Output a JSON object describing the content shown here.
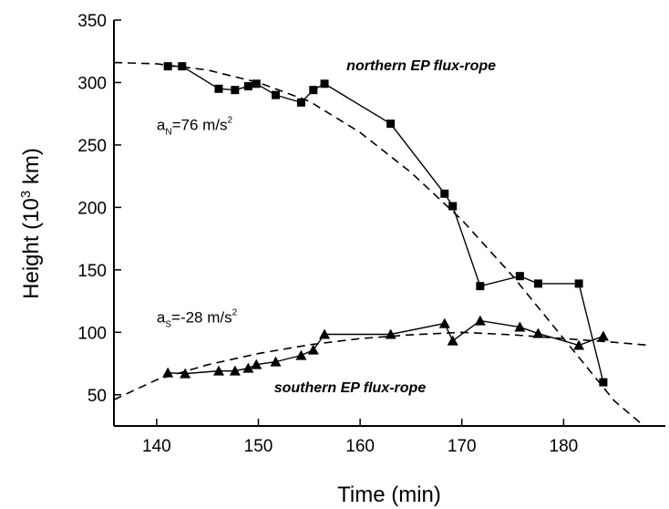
{
  "chart_data": {
    "type": "line",
    "x_label": "Time (min)",
    "y_label": {
      "before": "Height (10",
      "sup": "3",
      "after": " km)"
    },
    "xlim": [
      135.8,
      190
    ],
    "ylim": [
      25,
      350
    ],
    "xticks": [
      140,
      150,
      160,
      170,
      180
    ],
    "yticks": [
      50,
      100,
      150,
      200,
      250,
      300,
      350
    ],
    "series": [
      {
        "marker": "square",
        "color": "#000000",
        "style": "solid",
        "x": [
          141.1,
          142.5,
          146.1,
          147.7,
          149.0,
          149.8,
          151.7,
          154.2,
          155.4,
          156.5,
          163.0,
          168.3,
          169.1,
          171.8,
          175.7,
          177.5,
          181.5,
          183.9
        ],
        "values": [
          313,
          313,
          295,
          294,
          297,
          299,
          290,
          284,
          294,
          299,
          267,
          211,
          201,
          137,
          145,
          139,
          139,
          60
        ]
      },
      {
        "marker": "triangle",
        "color": "#000000",
        "style": "solid",
        "x": [
          141.1,
          142.8,
          146.1,
          147.7,
          149.0,
          149.8,
          151.7,
          154.2,
          155.4,
          156.5,
          163.0,
          168.3,
          169.1,
          171.8,
          175.7,
          177.5,
          181.5,
          183.9
        ],
        "values": [
          67.6,
          66.9,
          69.1,
          69.1,
          71.3,
          74.2,
          76.4,
          81.5,
          85.9,
          98.4,
          98.4,
          107.1,
          93.2,
          109.3,
          104.2,
          99.1,
          89.6,
          96.9
        ]
      },
      {
        "marker": "none",
        "color": "#000000",
        "style": "dashed",
        "x": [
          135.8,
          140,
          145,
          150,
          155,
          160,
          165,
          170,
          175,
          180,
          185,
          187.9
        ],
        "values": [
          316,
          315,
          310,
          300,
          285,
          260,
          228,
          190,
          145,
          95,
          45,
          25
        ]
      },
      {
        "marker": "none",
        "color": "#000000",
        "style": "dashed",
        "x": [
          135.8,
          140,
          145,
          150,
          155,
          160,
          165,
          170,
          175,
          180,
          185,
          188.4
        ],
        "values": [
          46,
          62,
          74,
          83,
          90,
          95,
          98,
          100,
          98,
          95,
          92,
          89.6
        ]
      }
    ],
    "annotations": [
      {
        "text": "northern EP flux-rope",
        "x": 166,
        "y": 310
      },
      {
        "text": "southern EP flux-rope",
        "x": 159,
        "y": 52
      }
    ],
    "accelerations": [
      {
        "a": "a",
        "sub": "N",
        "rest": "=76 m/s",
        "sup": "2",
        "x": 140,
        "y": 262
      },
      {
        "a": "a",
        "sub": "S",
        "rest": "=-28 m/s",
        "sup": "2",
        "x": 140,
        "y": 108
      }
    ]
  }
}
